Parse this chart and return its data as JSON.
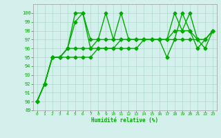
{
  "xlabel": "Humidité relative (%)",
  "xlim": [
    -0.5,
    23.5
  ],
  "ylim": [
    89,
    101
  ],
  "yticks": [
    89,
    90,
    91,
    92,
    93,
    94,
    95,
    96,
    97,
    98,
    99,
    100
  ],
  "xticks": [
    0,
    1,
    2,
    3,
    4,
    5,
    6,
    7,
    8,
    9,
    10,
    11,
    12,
    13,
    14,
    15,
    16,
    17,
    18,
    19,
    20,
    21,
    22,
    23
  ],
  "background_color": "#d4f0ec",
  "grid_color": "#b0d8cc",
  "line_color": "#00aa00",
  "marker": "D",
  "markersize": 2.5,
  "linewidth": 1.0,
  "series": [
    [
      90,
      92,
      95,
      95,
      96,
      99,
      100,
      97,
      97,
      100,
      97,
      100,
      97,
      97,
      97,
      97,
      97,
      97,
      100,
      98,
      100,
      97,
      96,
      98
    ],
    [
      90,
      92,
      95,
      95,
      96,
      100,
      100,
      96,
      97,
      97,
      97,
      97,
      97,
      97,
      97,
      97,
      97,
      95,
      97,
      100,
      98,
      96,
      97,
      98
    ],
    [
      90,
      92,
      95,
      95,
      96,
      96,
      96,
      96,
      96,
      96,
      96,
      97,
      97,
      97,
      97,
      97,
      97,
      97,
      98,
      98,
      98,
      97,
      97,
      98
    ],
    [
      90,
      92,
      95,
      95,
      95,
      95,
      95,
      95,
      96,
      96,
      96,
      96,
      96,
      96,
      97,
      97,
      97,
      97,
      97,
      97,
      97,
      97,
      97,
      98
    ]
  ]
}
